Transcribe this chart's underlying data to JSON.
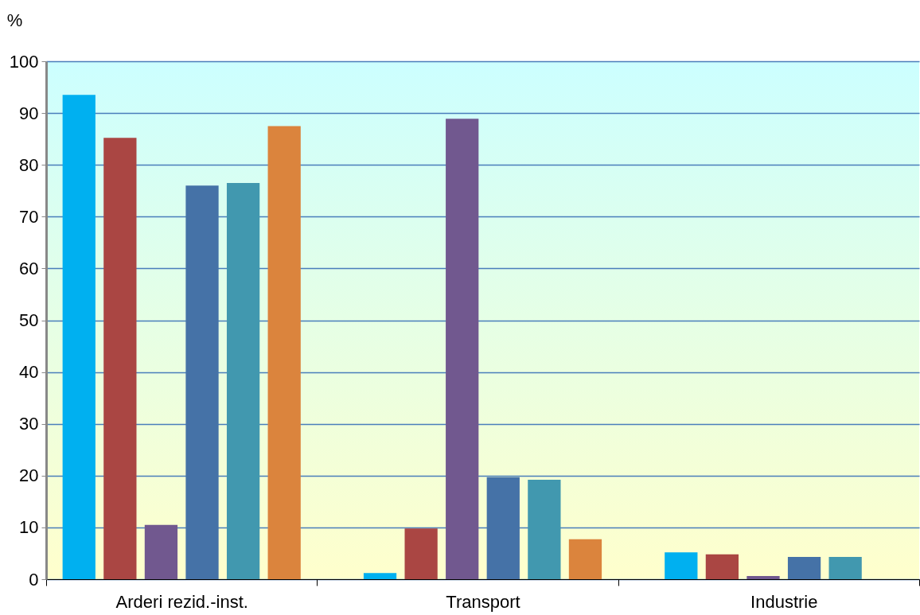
{
  "chart_data": {
    "type": "bar",
    "ylabel": "%",
    "categories": [
      "Arderi rezid.-inst.",
      "Transport",
      "Industrie"
    ],
    "series": [
      {
        "color": "#00b0f0",
        "values": [
          93.5,
          1.2,
          5.2
        ]
      },
      {
        "color": "#aa4643",
        "values": [
          85.2,
          9.8,
          4.8
        ]
      },
      {
        "color": "#71588f",
        "values": [
          10.5,
          88.9,
          0.6
        ]
      },
      {
        "color": "#4572a7",
        "values": [
          76.0,
          19.7,
          4.3
        ]
      },
      {
        "color": "#4198af",
        "values": [
          76.5,
          19.2,
          4.3
        ]
      },
      {
        "color": "#db843d",
        "values": [
          87.5,
          7.7,
          null
        ]
      }
    ],
    "ylim": [
      0,
      100
    ],
    "yticks": [
      0,
      10,
      20,
      30,
      40,
      50,
      60,
      70,
      80,
      90,
      100
    ],
    "grid": "y",
    "legend": false
  }
}
